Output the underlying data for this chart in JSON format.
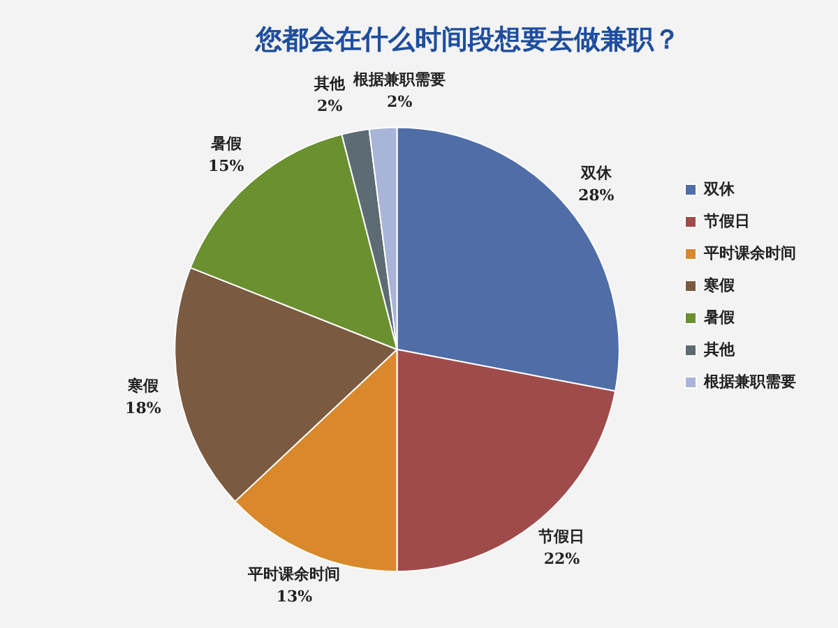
{
  "chart_data": {
    "type": "pie",
    "title": "您都会在什么时间段想要去做兼职？",
    "categories": [
      "双休",
      "节假日",
      "平时课余时间",
      "寒假",
      "暑假",
      "其他",
      "根据兼职需要"
    ],
    "values": [
      28,
      22,
      13,
      18,
      15,
      2,
      2
    ],
    "value_labels": [
      "28%",
      "22%",
      "13%",
      "18%",
      "15%",
      "2%",
      "2%"
    ],
    "colors": [
      "#4f6ea8",
      "#a04b4b",
      "#d9892b",
      "#7a5a40",
      "#6a902f",
      "#5d6b72",
      "#a8b4d8"
    ],
    "legend": "right"
  }
}
